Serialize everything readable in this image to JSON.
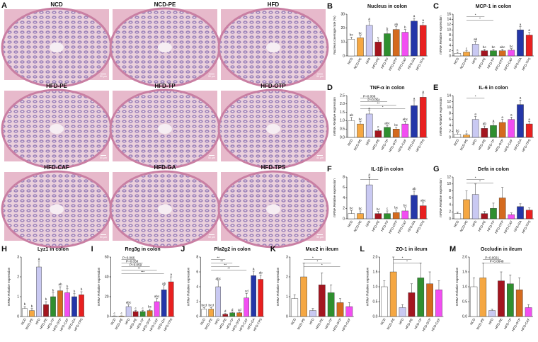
{
  "micrographs": {
    "panel": "A",
    "images": [
      "NCD",
      "NCD-PE",
      "HFD",
      "HFD-PE",
      "HFD-TP",
      "HFD-OTP",
      "HFD-CAF",
      "HFD-GA",
      "HFD-TPS"
    ],
    "scale_bar": "50 μm"
  },
  "chart_data": [
    {
      "type": "bar",
      "panel": "B",
      "title": "Nucleus in colon",
      "y_label": "Nucleus coverage rate (%)",
      "categories": [
        "NCD",
        "NCD-PE",
        "HFD",
        "HFD-PE",
        "HFD-TP",
        "HFD-OTP",
        "HFD-CAF",
        "HFD-GA",
        "HFD-TPS"
      ],
      "colors": [
        "#ffffff",
        "#f5a742",
        "#c9c9f2",
        "#a3151f",
        "#2f8f2f",
        "#d46a1e",
        "#f24ef2",
        "#2436a8",
        "#e82020"
      ],
      "values": [
        12,
        13,
        22,
        10,
        16,
        19,
        17,
        25,
        22
      ],
      "errors": [
        1.5,
        1.5,
        3,
        1.5,
        2,
        2,
        2,
        2,
        2
      ],
      "letters": [
        "bc",
        "bc",
        "a",
        "c",
        "b",
        "ab",
        "b",
        "a",
        "a"
      ],
      "ylim": [
        0,
        30
      ],
      "yticks": [
        0,
        10,
        20,
        30
      ]
    },
    {
      "type": "bar",
      "panel": "C",
      "title": "MCP-1 in colon",
      "y_label": "mRNA Relative expression",
      "categories": [
        "NCD",
        "NCD-PE",
        "HFD",
        "HFD-PE",
        "HFD-TP",
        "HFD-OTP",
        "HFD-CAF",
        "HFD-GA",
        "HFD-TPS"
      ],
      "colors": [
        "#ffffff",
        "#f5a742",
        "#c9c9f2",
        "#a3151f",
        "#2f8f2f",
        "#d46a1e",
        "#f24ef2",
        "#2436a8",
        "#e82020"
      ],
      "values": [
        1,
        1.5,
        4.5,
        2,
        2,
        2,
        2.2,
        10,
        8
      ],
      "errors": [
        0.4,
        0.5,
        1,
        0.5,
        0.5,
        0.5,
        0.6,
        1.2,
        1
      ],
      "letters": [
        "c",
        "c",
        "ab",
        "bc",
        "bc",
        "abc",
        "bc",
        "a",
        "a"
      ],
      "annotations": [
        "*",
        "*"
      ],
      "ylim": [
        0,
        16
      ],
      "yticks": [
        0,
        2,
        4,
        6,
        8,
        10,
        12,
        14,
        16
      ]
    },
    {
      "type": "bar",
      "panel": "D",
      "title": "TNF-α in colon",
      "y_label": "mRNA Relative expression",
      "categories": [
        "NCD",
        "NCD-PE",
        "HFD",
        "HFD-PE",
        "HFD-TP",
        "HFD-OTP",
        "HFD-CAF",
        "HFD-GA",
        "HFD-TPS"
      ],
      "colors": [
        "#ffffff",
        "#f5a742",
        "#c9c9f2",
        "#a3151f",
        "#2f8f2f",
        "#d46a1e",
        "#f24ef2",
        "#2436a8",
        "#e82020"
      ],
      "values": [
        1.0,
        0.8,
        1.4,
        0.4,
        0.6,
        0.5,
        0.8,
        1.9,
        2.4
      ],
      "errors": [
        0.2,
        0.15,
        0.2,
        0.1,
        0.1,
        0.1,
        0.15,
        0.3,
        0.2
      ],
      "letters": [
        "ab",
        "bc",
        "a",
        "c",
        "abc",
        "bc",
        "abc",
        "a",
        "a"
      ],
      "annotations": [
        "P=0.006",
        "P=0.054",
        "**",
        "*"
      ],
      "ylim": [
        0,
        2.5
      ],
      "yticks": [
        {
          "value": 0,
          "label": "0.0"
        },
        {
          "value": 0.5,
          "label": "0.5"
        },
        {
          "value": 1,
          "label": "1.0"
        },
        {
          "value": 1.5,
          "label": "1.5"
        },
        {
          "value": 2,
          "label": "2.0"
        },
        {
          "value": 2.5,
          "label": "2.5"
        }
      ]
    },
    {
      "type": "bar",
      "panel": "E",
      "title": "IL-6 in colon",
      "y_label": "mRNA Relative expression",
      "categories": [
        "NCD",
        "NCD-PE",
        "HFD",
        "HFD-PE",
        "HFD-TP",
        "HFD-OTP",
        "HFD-CAF",
        "HFD-GA",
        "HFD-TPS"
      ],
      "colors": [
        "#ffffff",
        "#f5a742",
        "#c9c9f2",
        "#a3151f",
        "#2f8f2f",
        "#d46a1e",
        "#f24ef2",
        "#2436a8",
        "#e82020"
      ],
      "values": [
        1,
        0.8,
        6,
        3,
        4,
        5,
        6,
        11,
        4.5
      ],
      "errors": [
        0.5,
        0.4,
        1,
        0.8,
        0.8,
        1,
        0.8,
        1.5,
        0.8
      ],
      "letters": [
        "bc",
        "c",
        "a",
        "ab",
        "a",
        "a",
        "a",
        "a",
        "a"
      ],
      "annotations": [
        "*"
      ],
      "ylim": [
        0,
        14
      ],
      "yticks": [
        0,
        2,
        4,
        6,
        8,
        10,
        12,
        14
      ]
    },
    {
      "type": "bar",
      "panel": "F",
      "title": "IL-1β in colon",
      "y_label": "mRNA Relative expression",
      "categories": [
        "NCD",
        "NCD-PE",
        "HFD",
        "HFD-PE",
        "HFD-TP",
        "HFD-OTP",
        "HFD-CAF",
        "HFD-GA",
        "HFD-TPS"
      ],
      "colors": [
        "#ffffff",
        "#f5a742",
        "#c9c9f2",
        "#a3151f",
        "#2f8f2f",
        "#d46a1e",
        "#f24ef2",
        "#2436a8",
        "#e82020"
      ],
      "values": [
        1,
        1,
        6.5,
        1,
        1,
        1.2,
        1.5,
        4.5,
        2.5
      ],
      "errors": [
        0.6,
        0.5,
        1.5,
        0.4,
        0.5,
        0.5,
        0.6,
        0.8,
        0.6
      ],
      "letters": [
        "bc",
        "bc",
        "a",
        "bc",
        "c",
        "bc",
        "bc",
        "ab",
        "abc"
      ],
      "annotations": [
        "*"
      ],
      "ylim": [
        0,
        8
      ],
      "yticks": [
        0,
        2,
        4,
        6,
        8
      ]
    },
    {
      "type": "bar",
      "panel": "G",
      "title": "Defa in colon",
      "y_label": "mRNA Relative expression",
      "categories": [
        "NCD",
        "NCD-PE",
        "HFD",
        "HFD-PE",
        "HFD-TP",
        "HFD-OTP",
        "HFD-CAF",
        "HFD-GA",
        "HFD-TPS"
      ],
      "colors": [
        "#ffffff",
        "#f5a742",
        "#c9c9f2",
        "#a3151f",
        "#2f8f2f",
        "#d46a1e",
        "#f24ef2",
        "#2436a8",
        "#e82020"
      ],
      "values": [
        1.5,
        5.5,
        7,
        1.5,
        3,
        6,
        1.2,
        3.5,
        2.5
      ],
      "errors": [
        0.4,
        2.5,
        3,
        0.6,
        1.5,
        3,
        0.5,
        0.8,
        0.6
      ],
      "annotations": [
        "*",
        "*"
      ],
      "ylim": [
        0,
        12
      ],
      "yticks": [
        0,
        2,
        4,
        6,
        8,
        10,
        12
      ]
    },
    {
      "type": "bar",
      "panel": "H",
      "title": "Lyz1 in colon",
      "y_label": "mRNA Relative expression",
      "categories": [
        "NCD",
        "NCD-PE",
        "HFD",
        "HFD-PE",
        "HFD-TP",
        "HFD-OTP",
        "HFD-CAF",
        "HFD-GA",
        "HFD-TPS"
      ],
      "colors": [
        "#ffffff",
        "#f5a742",
        "#c9c9f2",
        "#a3151f",
        "#2f8f2f",
        "#d46a1e",
        "#f24ef2",
        "#2436a8",
        "#e82020"
      ],
      "values": [
        0.4,
        0.3,
        2.5,
        0.6,
        1.0,
        1.3,
        1.2,
        1.0,
        1.1
      ],
      "errors": [
        0.1,
        0.1,
        0.3,
        0.15,
        0.2,
        0.2,
        0.2,
        0.15,
        0.15
      ],
      "letters": [
        "b",
        "b",
        "a",
        "b",
        "b",
        "ab",
        "b",
        "b",
        "b"
      ],
      "ylim": [
        0,
        3
      ],
      "yticks": [
        0,
        1,
        2,
        3
      ]
    },
    {
      "type": "bar",
      "panel": "I",
      "title": "Reg3g in colon",
      "y_label": "mRNA Relative expression",
      "categories": [
        "NCD",
        "NCD-PE",
        "HFD",
        "HFD-PE",
        "HFD-TP",
        "HFD-OTP",
        "HFD-CAF",
        "HFD-GA",
        "HFD-TPS"
      ],
      "colors": [
        "#ffffff",
        "#f5a742",
        "#c9c9f2",
        "#a3151f",
        "#2f8f2f",
        "#d46a1e",
        "#f24ef2",
        "#2436a8",
        "#e82020"
      ],
      "values": [
        0.5,
        0.5,
        10,
        5,
        5,
        6,
        15,
        27,
        35
      ],
      "errors": [
        0.2,
        0.2,
        2,
        1,
        1,
        1.5,
        3,
        4,
        5
      ],
      "letters": [
        "c",
        "c",
        "abc",
        "c",
        "c",
        "bc",
        "abc",
        "ab",
        "a"
      ],
      "annotations": [
        "P=0.066",
        "P=0.058",
        "P=0.059",
        "**",
        "***"
      ],
      "ylim": [
        0,
        60
      ],
      "yticks": [
        0,
        20,
        40,
        60
      ]
    },
    {
      "type": "bar",
      "panel": "J",
      "title": "Pla2g2 in colon",
      "y_label": "mRNA Relative expression",
      "categories": [
        "NCD",
        "NCD-PE",
        "HFD",
        "HFD-PE",
        "HFD-TP",
        "HFD-OTP",
        "HFD-CAF",
        "HFD-GA",
        "HFD-TPS"
      ],
      "colors": [
        "#ffffff",
        "#f5a742",
        "#c9c9f2",
        "#a3151f",
        "#2f8f2f",
        "#d46a1e",
        "#f24ef2",
        "#2436a8",
        "#e82020"
      ],
      "values": [
        1,
        1,
        4,
        0.3,
        0.5,
        0.5,
        2.5,
        5.5,
        5
      ],
      "errors": [
        0.2,
        0.2,
        0.8,
        0.1,
        0.1,
        0.1,
        0.6,
        0.6,
        0.6
      ],
      "letters": [
        "bcd",
        "bcd",
        "abc",
        "d",
        "d",
        "cd",
        "cd",
        "a",
        "ab"
      ],
      "annotations": [
        "**",
        "**",
        "**",
        "**"
      ],
      "ylim": [
        0,
        8
      ],
      "yticks": [
        0,
        2,
        4,
        6,
        8
      ]
    },
    {
      "type": "bar",
      "panel": "K",
      "title": "Muc2 in ileum",
      "y_label": "mRNA Relative expression",
      "categories": [
        "NCD",
        "NCD-PE",
        "HFD",
        "HFD-PE",
        "HFD-TP",
        "HFD-OTP",
        "HFD-CAF"
      ],
      "colors": [
        "#ffffff",
        "#f5a742",
        "#c9c9f2",
        "#a3151f",
        "#2f8f2f",
        "#d46a1e",
        "#f24ef2"
      ],
      "values": [
        0.9,
        2,
        0.3,
        1.6,
        1.2,
        0.7,
        0.5
      ],
      "errors": [
        0.2,
        0.7,
        0.1,
        0.6,
        0.4,
        0.2,
        0.2
      ],
      "annotations": [
        "*",
        "*",
        "*"
      ],
      "ylim": [
        0,
        3
      ],
      "yticks": [
        0,
        1,
        2,
        3
      ]
    },
    {
      "type": "bar",
      "panel": "L",
      "title": "ZO-1 in ileum",
      "y_label": "mRNA Relative expression",
      "categories": [
        "NCD",
        "NCD-PE",
        "HFD",
        "HFD-PE",
        "HFD-TP",
        "HFD-OTP",
        "HFD-CAF"
      ],
      "colors": [
        "#ffffff",
        "#f5a742",
        "#c9c9f2",
        "#a3151f",
        "#2f8f2f",
        "#d46a1e",
        "#f24ef2"
      ],
      "values": [
        1,
        1.5,
        0.3,
        0.8,
        1.3,
        1.1,
        0.9
      ],
      "errors": [
        0.2,
        0.5,
        0.1,
        0.3,
        0.5,
        0.4,
        0.3
      ],
      "annotations": [
        "*",
        "*"
      ],
      "ylim": [
        0,
        2
      ],
      "yticks": [
        {
          "value": 0,
          "label": "0.0"
        },
        {
          "value": 0.5,
          "label": "0.5"
        },
        {
          "value": 1,
          "label": "1.0"
        },
        {
          "value": 1.5,
          "label": "1.5"
        },
        {
          "value": 2,
          "label": "2.0"
        }
      ]
    },
    {
      "type": "bar",
      "panel": "M",
      "title": "Occludin in ileum",
      "y_label": "mRNA Relative expression",
      "categories": [
        "NCD",
        "NCD-PE",
        "HFD",
        "HFD-PE",
        "HFD-TP",
        "HFD-OTP",
        "HFD-CAF"
      ],
      "colors": [
        "#ffffff",
        "#f5a742",
        "#c9c9f2",
        "#a3151f",
        "#2f8f2f",
        "#d46a1e",
        "#f24ef2"
      ],
      "values": [
        1,
        1.3,
        0.2,
        1.2,
        1.1,
        0.9,
        0.3
      ],
      "errors": [
        0.3,
        0.5,
        0.05,
        0.3,
        0.3,
        0.4,
        0.1
      ],
      "annotations": [
        "P=0.0021",
        "P=0.0648"
      ],
      "ylim": [
        0,
        2
      ],
      "yticks": [
        {
          "value": 0,
          "label": "0.0"
        },
        {
          "value": 0.5,
          "label": "0.5"
        },
        {
          "value": 1,
          "label": "1.0"
        },
        {
          "value": 1.5,
          "label": "1.5"
        },
        {
          "value": 2,
          "label": "2.0"
        }
      ]
    }
  ]
}
